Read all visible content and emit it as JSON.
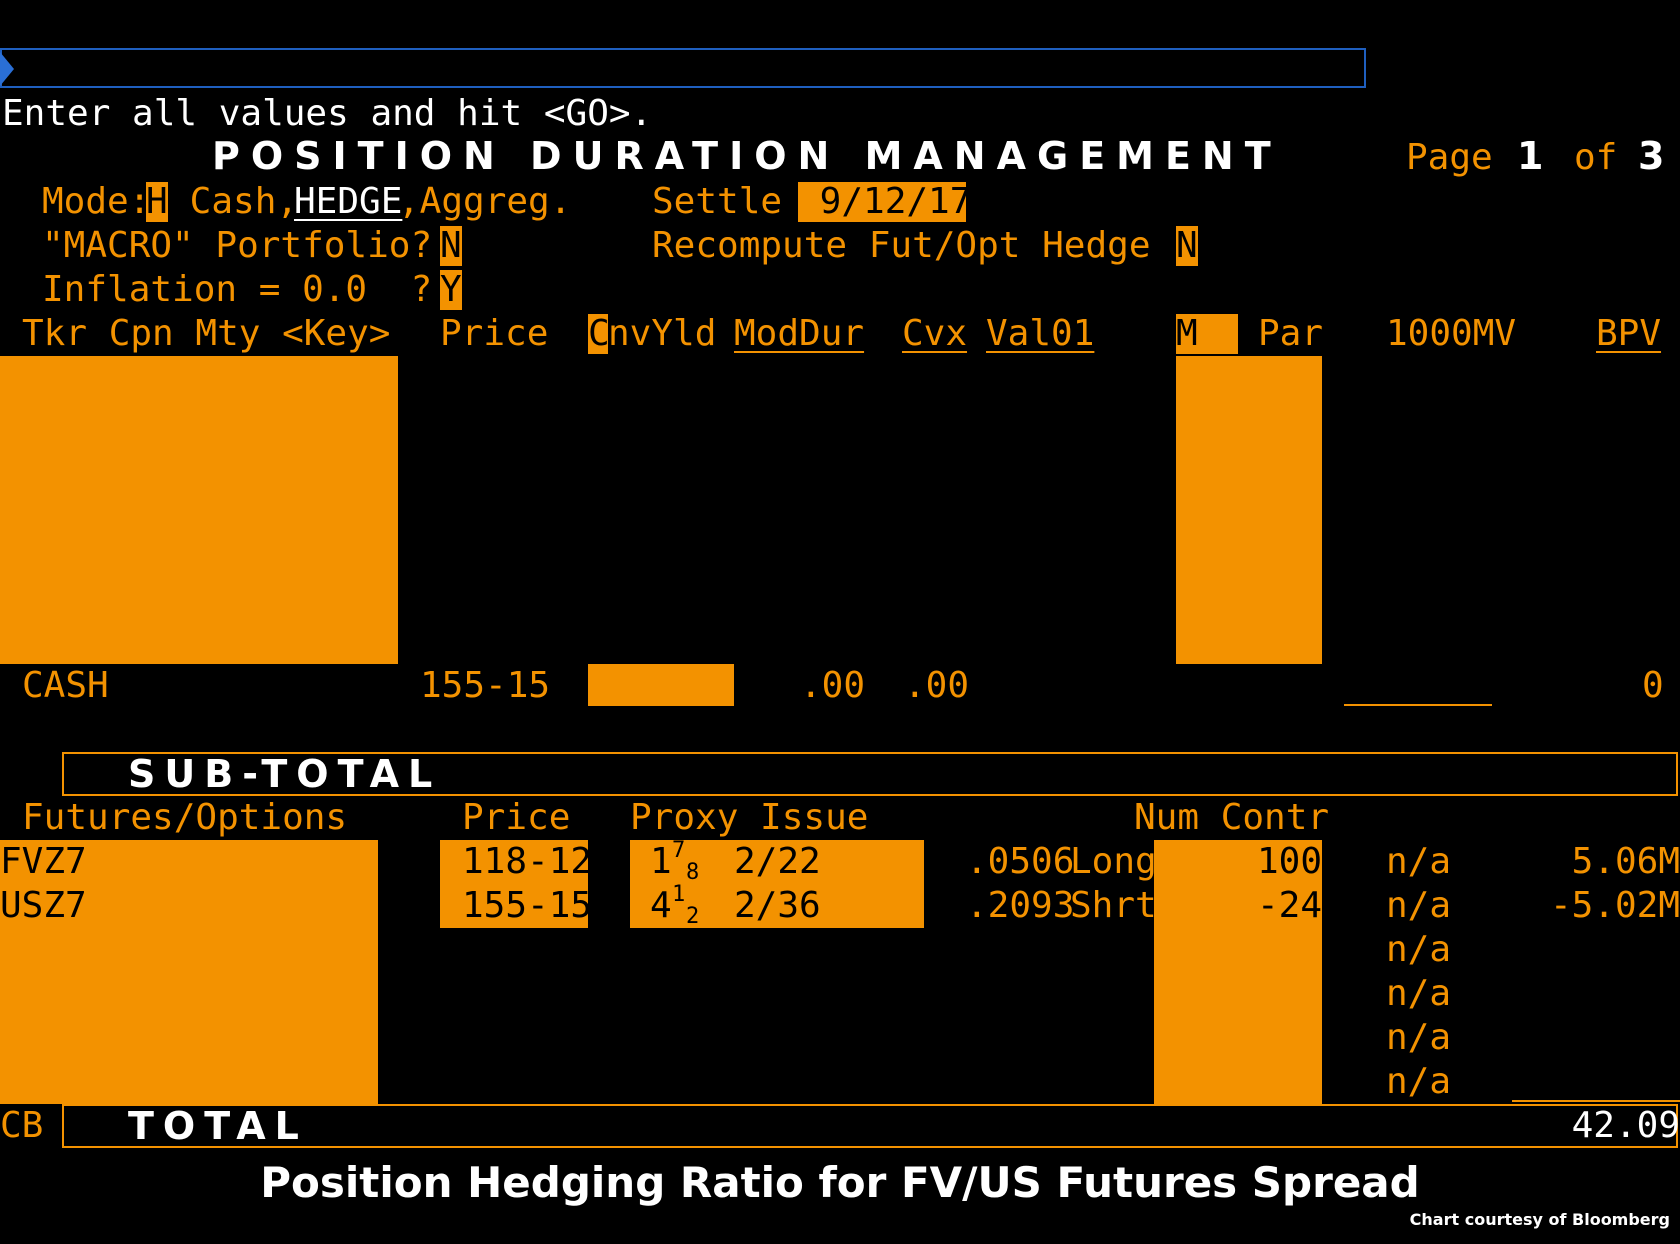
{
  "command_line": {
    "value": ""
  },
  "prompt": "Enter all values and hit <GO>.",
  "header": {
    "title": "POSITION DURATION MANAGEMENT",
    "page_word": "Page",
    "page_num": "1",
    "page_of": "of",
    "page_total": "3"
  },
  "settings": {
    "mode_label": "Mode:",
    "mode_value": "H",
    "mode_opt_cash": " Cash,",
    "mode_opt_hedge": "HEDGE",
    "mode_opt_aggreg": ",Aggreg.",
    "settle_label": "Settle",
    "settle_value": " 9/12/17",
    "macro_label": "\"MACRO\" Portfolio?",
    "macro_value": "N",
    "recompute_label": "Recompute Fut/Opt Hedge",
    "recompute_value": "N",
    "inflation_label": "Inflation = 0.0  ?",
    "inflation_value": "Y"
  },
  "columns": {
    "tkr": "Tkr Cpn Mty <Key>",
    "price": "Price",
    "cnvyld_c": "C",
    "cnvyld_rest": "nvYld",
    "moddur": "ModDur",
    "cvx": "Cvx",
    "val01": "Val01",
    "m": "M",
    "par": "Par",
    "mv": "1000MV",
    "bpv": "BPV"
  },
  "cash_row": {
    "label": "CASH",
    "price": "155-15",
    "moddur": ".00",
    "cvx": ".00",
    "bpv": "0"
  },
  "subtotal_label": "SUB-TOTAL",
  "futures_header": {
    "label": "Futures/Options",
    "price": "Price",
    "proxy": "Proxy Issue",
    "num_contr": "Num Contr"
  },
  "futures": [
    {
      "ticker": "FVZ7",
      "price": "118-12",
      "cpn_whole": "1",
      "cpn_num": "7",
      "cpn_den": "8",
      "proxy_mty": "2/22",
      "ratio": ".0506",
      "side": "Long",
      "contracts": "100",
      "mv": "n/a",
      "bpv": "5.06M"
    },
    {
      "ticker": "USZ7",
      "price": "155-15",
      "cpn_whole": "4",
      "cpn_num": "1",
      "cpn_den": "2",
      "proxy_mty": "2/36",
      "ratio": ".2093",
      "side": "Shrt",
      "contracts": "-24",
      "mv": "n/a",
      "bpv": "-5.02M"
    }
  ],
  "extra_na": [
    "n/a",
    "n/a",
    "n/a",
    "n/a"
  ],
  "total": {
    "prefix": "CB",
    "label": "TOTAL",
    "value": "42.09"
  },
  "caption": "Position Hedging Ratio for FV/US Futures Spread",
  "credit": "Chart courtesy of Bloomberg",
  "colors": {
    "amber": "#f39200",
    "background": "#000000",
    "command_border": "#1f5fbf"
  }
}
